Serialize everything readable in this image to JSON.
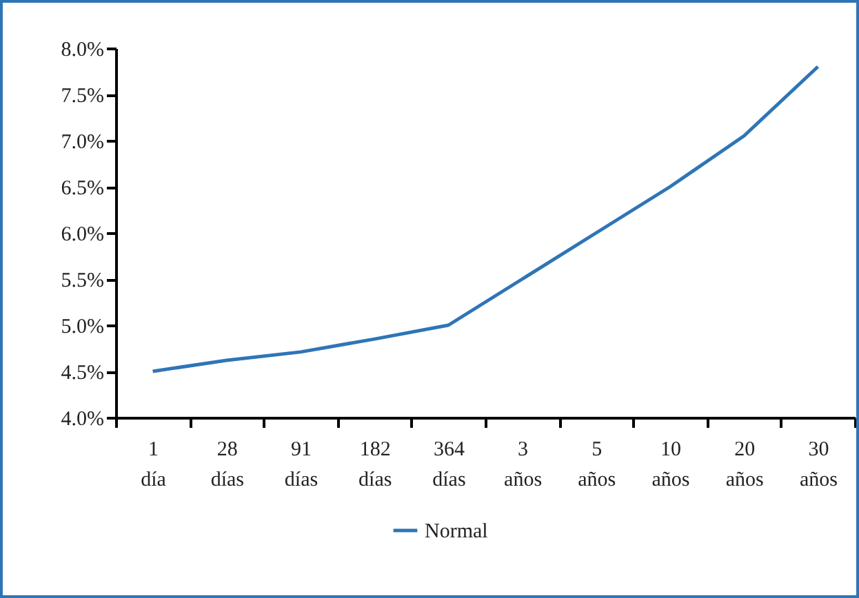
{
  "chart_data": {
    "type": "line",
    "categories": [
      "1 día",
      "28 días",
      "91 días",
      "182 días",
      "364 días",
      "3 años",
      "5 años",
      "10 años",
      "20 años",
      "30 años"
    ],
    "series": [
      {
        "name": "Normal",
        "color": "#2e75b6",
        "values": [
          4.5,
          4.62,
          4.71,
          4.85,
          5.0,
          5.5,
          6.0,
          6.5,
          7.05,
          7.8
        ]
      }
    ],
    "ylim": [
      4,
      8
    ],
    "yticks": [
      {
        "value": 4,
        "label": "4.0%"
      },
      {
        "value": 4.5,
        "label": "4.5%"
      },
      {
        "value": 5,
        "label": "5.0%"
      },
      {
        "value": 5.5,
        "label": "5.5%"
      },
      {
        "value": 6,
        "label": "6.0%"
      },
      {
        "value": 6.5,
        "label": "6.5%"
      },
      {
        "value": 7,
        "label": "7.0%"
      },
      {
        "value": 7.5,
        "label": "7.5%"
      },
      {
        "value": 8,
        "label": "8.0%"
      }
    ],
    "grid": false,
    "legend": "bottom",
    "marker": "none",
    "line_style": "solid"
  }
}
